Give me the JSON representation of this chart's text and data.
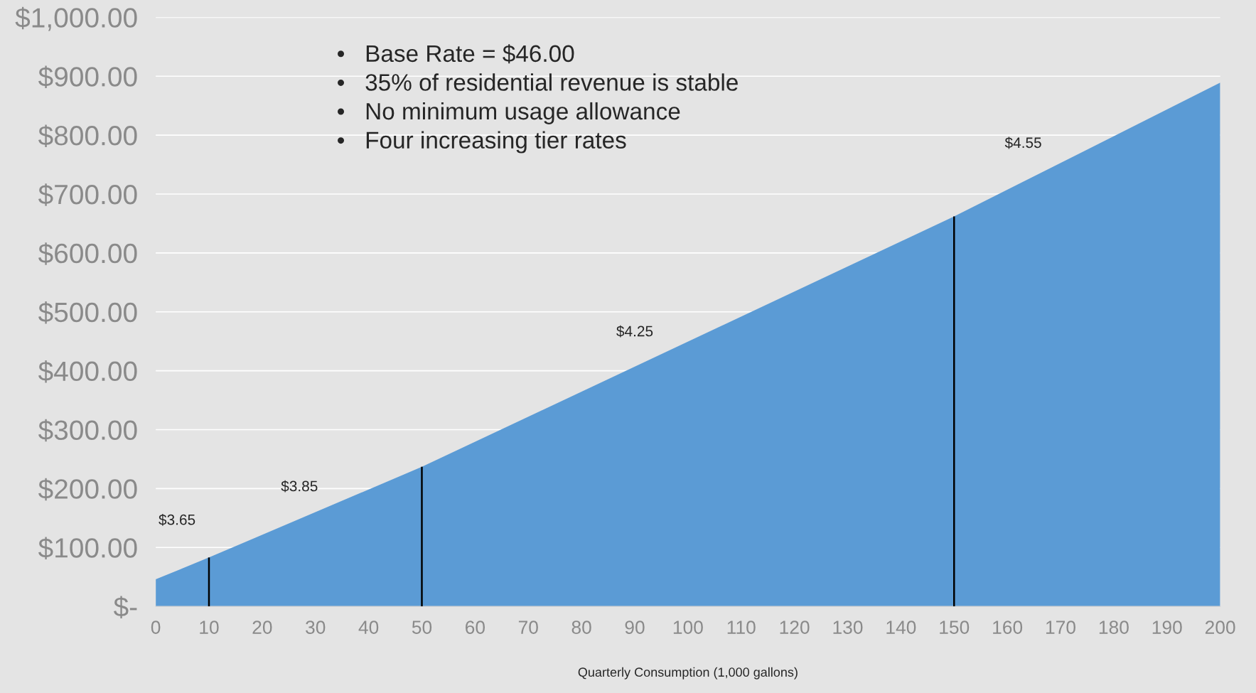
{
  "chart_data": {
    "type": "area",
    "xlabel": "Quarterly Consumption (1,000 gallons)",
    "x": [
      0,
      10,
      50,
      150,
      200
    ],
    "series": [
      {
        "color": "#5b9bd5",
        "values": [
          46,
          83,
          237,
          662,
          889
        ]
      }
    ],
    "xlim": [
      0,
      200
    ],
    "xticks": [
      0,
      10,
      20,
      30,
      40,
      50,
      60,
      70,
      80,
      90,
      100,
      110,
      120,
      130,
      140,
      150,
      160,
      170,
      180,
      190,
      200
    ],
    "ylim": [
      0,
      1000
    ],
    "yticks": [
      {
        "value": 0,
        "label": "$-"
      },
      {
        "value": 100,
        "label": "$100.00"
      },
      {
        "value": 200,
        "label": "$200.00"
      },
      {
        "value": 300,
        "label": "$300.00"
      },
      {
        "value": 400,
        "label": "$400.00"
      },
      {
        "value": 500,
        "label": "$500.00"
      },
      {
        "value": 600,
        "label": "$600.00"
      },
      {
        "value": 700,
        "label": "$700.00"
      },
      {
        "value": 800,
        "label": "$800.00"
      },
      {
        "value": 900,
        "label": "$900.00"
      },
      {
        "value": 1000,
        "label": "$1,000.00"
      }
    ],
    "grid": "y",
    "ref_lines": [
      {
        "axis": "x",
        "value": 10,
        "color": "#000000"
      },
      {
        "axis": "x",
        "value": 50,
        "color": "#000000"
      },
      {
        "axis": "x",
        "value": 150,
        "color": "#000000"
      }
    ],
    "annotations": [
      "•   Base Rate = $46.00",
      "•   35% of residential revenue is stable",
      "•   No minimum usage allowance",
      "•   Four increasing tier rates",
      "$3.65",
      "$3.85",
      "$4.25",
      "$4.55"
    ]
  }
}
